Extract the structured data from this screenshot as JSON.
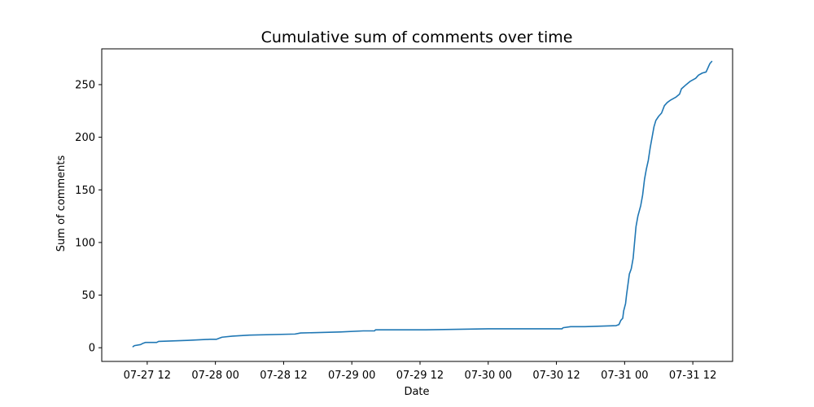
{
  "chart_data": {
    "type": "line",
    "title": "Cumulative sum of comments over time",
    "xlabel": "Date",
    "ylabel": "Sum of comments",
    "xlim": [
      "2019-07-27 04:00",
      "2019-07-31 19:00"
    ],
    "ylim": [
      -13,
      284
    ],
    "grid": false,
    "legend": "none",
    "x_ticks": [
      {
        "x": "2019-07-27 12:00",
        "label": "07-27 12"
      },
      {
        "x": "2019-07-28 00:00",
        "label": "07-28 00"
      },
      {
        "x": "2019-07-28 12:00",
        "label": "07-28 12"
      },
      {
        "x": "2019-07-29 00:00",
        "label": "07-29 00"
      },
      {
        "x": "2019-07-29 12:00",
        "label": "07-29 12"
      },
      {
        "x": "2019-07-30 00:00",
        "label": "07-30 00"
      },
      {
        "x": "2019-07-30 12:00",
        "label": "07-30 12"
      },
      {
        "x": "2019-07-31 00:00",
        "label": "07-31 00"
      },
      {
        "x": "2019-07-31 12:00",
        "label": "07-31 12"
      }
    ],
    "y_ticks": [
      0,
      50,
      100,
      150,
      200,
      250
    ],
    "series": [
      {
        "color": "#1f77b4",
        "points": [
          [
            "2019-07-27 09:30",
            1
          ],
          [
            "2019-07-27 09:45",
            2
          ],
          [
            "2019-07-27 10:50",
            3
          ],
          [
            "2019-07-27 11:10",
            4
          ],
          [
            "2019-07-27 11:40",
            5
          ],
          [
            "2019-07-27 13:40",
            5
          ],
          [
            "2019-07-27 14:00",
            6
          ],
          [
            "2019-07-27 19:00",
            7
          ],
          [
            "2019-07-27 23:00",
            8
          ],
          [
            "2019-07-28 00:10",
            8
          ],
          [
            "2019-07-28 00:40",
            9
          ],
          [
            "2019-07-28 01:10",
            10
          ],
          [
            "2019-07-28 03:00",
            11
          ],
          [
            "2019-07-28 06:00",
            12
          ],
          [
            "2019-07-28 14:00",
            13
          ],
          [
            "2019-07-28 15:00",
            14
          ],
          [
            "2019-07-28 22:00",
            15
          ],
          [
            "2019-07-29 02:00",
            16
          ],
          [
            "2019-07-29 04:00",
            16
          ],
          [
            "2019-07-29 04:10",
            17
          ],
          [
            "2019-07-29 13:00",
            17
          ],
          [
            "2019-07-30 00:00",
            18
          ],
          [
            "2019-07-30 13:00",
            18
          ],
          [
            "2019-07-30 13:10",
            19
          ],
          [
            "2019-07-30 14:30",
            20
          ],
          [
            "2019-07-30 17:00",
            20
          ],
          [
            "2019-07-30 22:30",
            21
          ],
          [
            "2019-07-30 23:00",
            22
          ],
          [
            "2019-07-30 23:20",
            26
          ],
          [
            "2019-07-30 23:40",
            28
          ],
          [
            "2019-07-30 23:50",
            35
          ],
          [
            "2019-07-31 00:10",
            42
          ],
          [
            "2019-07-31 00:20",
            50
          ],
          [
            "2019-07-31 00:35",
            60
          ],
          [
            "2019-07-31 00:50",
            70
          ],
          [
            "2019-07-31 01:10",
            75
          ],
          [
            "2019-07-31 01:30",
            85
          ],
          [
            "2019-07-31 01:45",
            100
          ],
          [
            "2019-07-31 02:00",
            115
          ],
          [
            "2019-07-31 02:20",
            125
          ],
          [
            "2019-07-31 02:50",
            135
          ],
          [
            "2019-07-31 03:10",
            145
          ],
          [
            "2019-07-31 03:30",
            160
          ],
          [
            "2019-07-31 03:50",
            170
          ],
          [
            "2019-07-31 04:10",
            178
          ],
          [
            "2019-07-31 04:30",
            190
          ],
          [
            "2019-07-31 04:50",
            200
          ],
          [
            "2019-07-31 05:10",
            210
          ],
          [
            "2019-07-31 05:30",
            216
          ],
          [
            "2019-07-31 06:00",
            220
          ],
          [
            "2019-07-31 06:30",
            223
          ],
          [
            "2019-07-31 07:00",
            230
          ],
          [
            "2019-07-31 07:30",
            233
          ],
          [
            "2019-07-31 08:00",
            235
          ],
          [
            "2019-07-31 09:00",
            238
          ],
          [
            "2019-07-31 09:40",
            241
          ],
          [
            "2019-07-31 10:00",
            246
          ],
          [
            "2019-07-31 10:50",
            250
          ],
          [
            "2019-07-31 11:30",
            253
          ],
          [
            "2019-07-31 12:30",
            256
          ],
          [
            "2019-07-31 13:00",
            259
          ],
          [
            "2019-07-31 13:40",
            261
          ],
          [
            "2019-07-31 14:20",
            262
          ],
          [
            "2019-07-31 14:40",
            266
          ],
          [
            "2019-07-31 15:00",
            270
          ],
          [
            "2019-07-31 15:20",
            272
          ]
        ]
      }
    ]
  }
}
